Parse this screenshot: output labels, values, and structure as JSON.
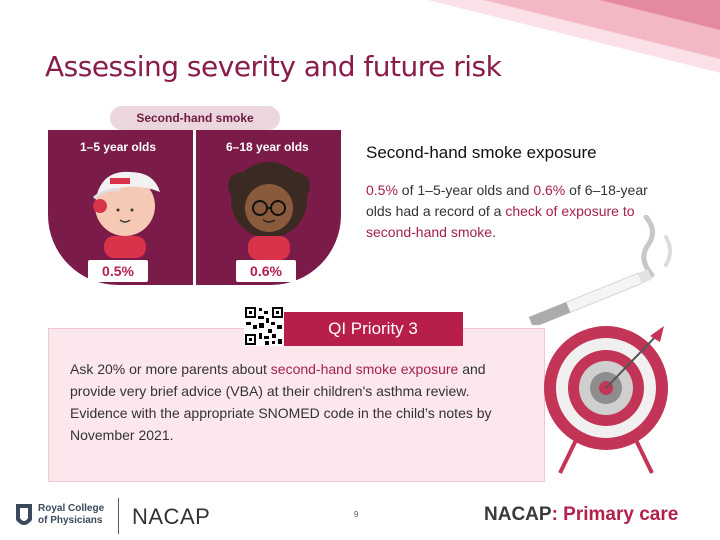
{
  "slide": {
    "title": "Assessing severity and future risk",
    "page_number": "9"
  },
  "infographic": {
    "header": "Second-hand smoke",
    "left_group": "1–5 year olds",
    "right_group": "6–18 year olds",
    "left_percent": "0.5%",
    "right_percent": "0.6%",
    "colors": {
      "panel": "#7a1b49",
      "accent": "#b2204c"
    }
  },
  "exposure": {
    "title": "Second-hand smoke exposure",
    "pct1": "0.5%",
    "text1": " of 1–5-year olds and ",
    "pct2": "0.6%",
    "text2": " of 6–18-year olds had a record of a ",
    "highlight": "check of exposure to second-hand smoke",
    "end": "."
  },
  "qi": {
    "header": "QI Priority 3",
    "text_a": "Ask 20% or more parents about ",
    "highlight": "second-hand smoke exposure",
    "text_b": " and provide very brief advice (VBA) at their children's asthma review. Evidence with the appropriate SNOMED code in the child’s notes by November 2021."
  },
  "footer": {
    "rcp_line1": "Royal College",
    "rcp_line2": "of Physicians",
    "nacap": "NACAP",
    "brand_a": "NACAP",
    "brand_b": ": Primary care"
  },
  "icons": [
    "qr-code-icon",
    "target-icon",
    "cigarette-icon",
    "child-icon",
    "rcp-crest-icon"
  ]
}
